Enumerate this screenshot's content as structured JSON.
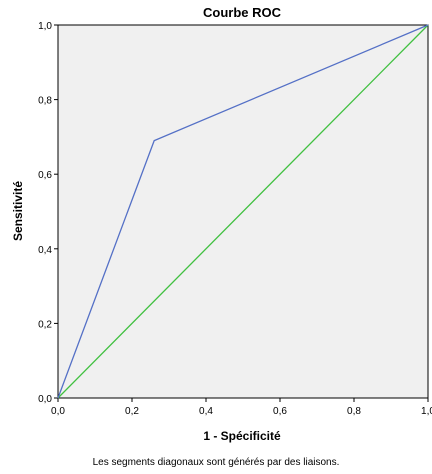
{
  "chart_data": {
    "type": "line",
    "title": "Courbe ROC",
    "xlabel": "1 - Spécificité",
    "ylabel": "Sensitivité",
    "xlim": [
      0,
      1
    ],
    "ylim": [
      0,
      1
    ],
    "x_ticks": [
      "0,0",
      "0,2",
      "0,4",
      "0,6",
      "0,8",
      "1,0"
    ],
    "y_ticks": [
      "0,0",
      "0,2",
      "0,4",
      "0,6",
      "0,8",
      "1,0"
    ],
    "grid": false,
    "series": [
      {
        "color": "#5470c6",
        "points": [
          [
            0,
            0
          ],
          [
            0.26,
            0.69
          ],
          [
            1,
            1
          ]
        ]
      },
      {
        "color": "#40c040",
        "points": [
          [
            0,
            0
          ],
          [
            1,
            1
          ]
        ]
      }
    ],
    "footnote": "Les segments diagonaux sont générés par des liaisons."
  }
}
